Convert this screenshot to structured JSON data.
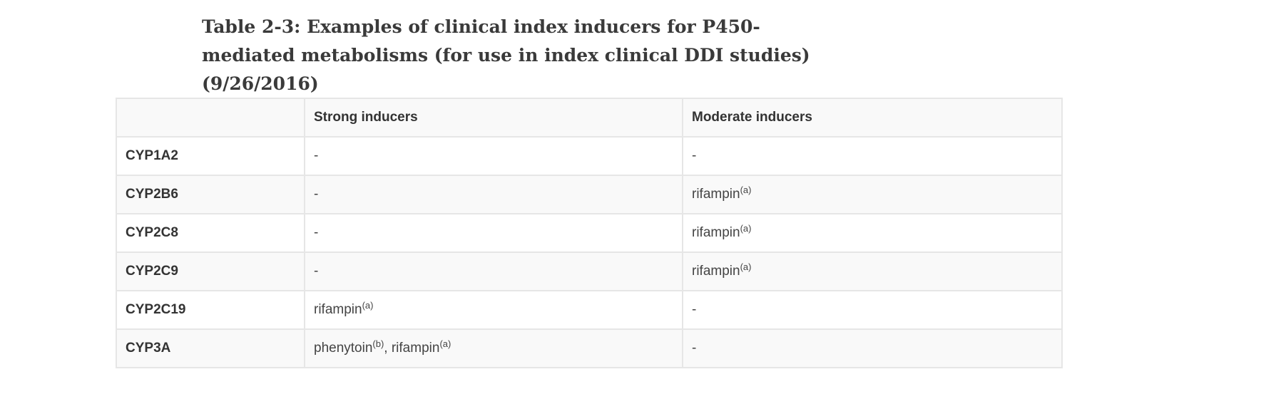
{
  "title": "Table 2-3: Examples of clinical index inducers for P450-mediated metabolisms (for use in index clinical DDI studies) (9/26/2016)",
  "table": {
    "headers": [
      "",
      "Strong inducers",
      "Moderate inducers"
    ],
    "rows": [
      {
        "enzyme": "CYP1A2",
        "strong": [
          {
            "text": "-",
            "sup": ""
          }
        ],
        "moderate": [
          {
            "text": "-",
            "sup": ""
          }
        ]
      },
      {
        "enzyme": "CYP2B6",
        "strong": [
          {
            "text": "-",
            "sup": ""
          }
        ],
        "moderate": [
          {
            "text": "rifampin",
            "sup": "(a)"
          }
        ]
      },
      {
        "enzyme": "CYP2C8",
        "strong": [
          {
            "text": "-",
            "sup": ""
          }
        ],
        "moderate": [
          {
            "text": "rifampin",
            "sup": "(a)"
          }
        ]
      },
      {
        "enzyme": "CYP2C9",
        "strong": [
          {
            "text": "-",
            "sup": ""
          }
        ],
        "moderate": [
          {
            "text": "rifampin",
            "sup": "(a)"
          }
        ]
      },
      {
        "enzyme": "CYP2C19",
        "strong": [
          {
            "text": "rifampin",
            "sup": "(a)"
          }
        ],
        "moderate": [
          {
            "text": "-",
            "sup": ""
          }
        ]
      },
      {
        "enzyme": "CYP3A",
        "strong": [
          {
            "text": "phenytoin",
            "sup": "(b)"
          },
          {
            "text": "rifampin",
            "sup": "(a)"
          }
        ],
        "moderate": [
          {
            "text": "-",
            "sup": ""
          }
        ]
      }
    ]
  }
}
